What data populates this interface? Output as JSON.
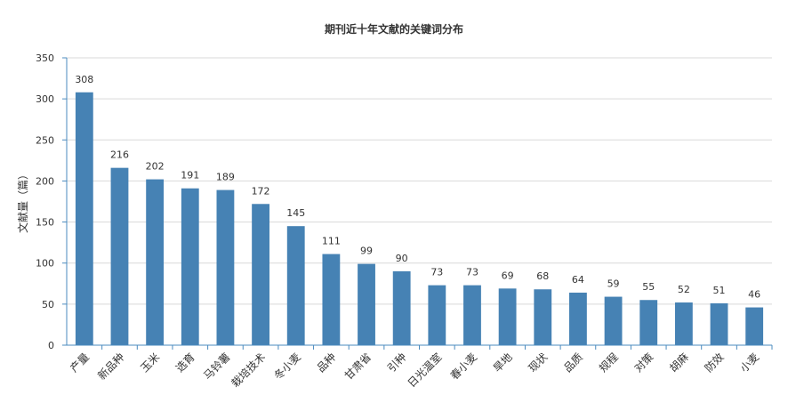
{
  "chart_data": {
    "type": "bar",
    "title": "期刊近十年文献的关键词分布",
    "xlabel": "",
    "ylabel": "文献量（篇）",
    "categories": [
      "产量",
      "新品种",
      "玉米",
      "选育",
      "马铃薯",
      "栽培技术",
      "冬小麦",
      "品种",
      "甘肃省",
      "引种",
      "日光温室",
      "春小麦",
      "旱地",
      "现状",
      "品质",
      "规程",
      "对策",
      "胡麻",
      "防效",
      "小麦"
    ],
    "values": [
      308,
      216,
      202,
      191,
      189,
      172,
      145,
      111,
      99,
      90,
      73,
      73,
      69,
      68,
      64,
      59,
      55,
      52,
      51,
      46
    ],
    "ylim": [
      0,
      350
    ],
    "yticks": [
      0,
      50,
      100,
      150,
      200,
      250,
      300,
      350
    ],
    "grid": true,
    "bar_color": "#4682b4",
    "axis_color": "#4b8bbf"
  }
}
